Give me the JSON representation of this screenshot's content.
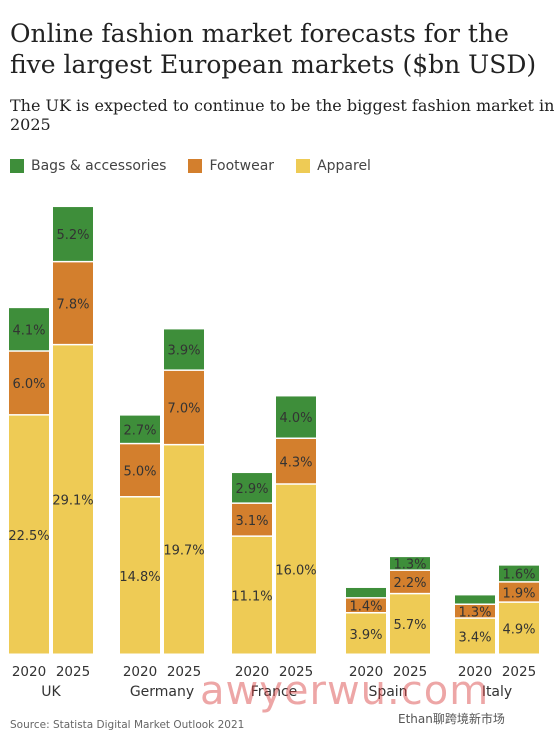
{
  "chart_data": {
    "type": "bar",
    "stacked": true,
    "title": "Online fashion market forecasts for the five largest European markets ($bn USD)",
    "subtitle": "The UK is expected to continue to be the biggest fashion market in 2025",
    "source": "Source: Statista Digital Market Outlook 2021",
    "legend_position": "top-left",
    "grid": false,
    "ylim": [
      0,
      42.2
    ],
    "colors": {
      "Bags & accessories": "#3e8e3a",
      "Footwear": "#d37f2d",
      "Apparel": "#eecb55"
    },
    "groups": [
      {
        "label": "UK",
        "bars": [
          {
            "x": "2020",
            "Apparel": 22.5,
            "Footwear": 6.0,
            "Bags & accessories": 4.1
          },
          {
            "x": "2025",
            "Apparel": 29.1,
            "Footwear": 7.8,
            "Bags & accessories": 5.2
          }
        ]
      },
      {
        "label": "Germany",
        "bars": [
          {
            "x": "2020",
            "Apparel": 14.8,
            "Footwear": 5.0,
            "Bags & accessories": 2.7
          },
          {
            "x": "2025",
            "Apparel": 19.7,
            "Footwear": 7.0,
            "Bags & accessories": 3.9
          }
        ]
      },
      {
        "label": "France",
        "bars": [
          {
            "x": "2020",
            "Apparel": 11.1,
            "Footwear": 3.1,
            "Bags & accessories": 2.9
          },
          {
            "x": "2025",
            "Apparel": 16.0,
            "Footwear": 4.3,
            "Bags & accessories": 4.0
          }
        ]
      },
      {
        "label": "Spain",
        "bars": [
          {
            "x": "2020",
            "Apparel": 3.9,
            "Footwear": 1.4,
            "Bags & accessories": 1.0
          },
          {
            "x": "2025",
            "Apparel": 5.7,
            "Footwear": 2.2,
            "Bags & accessories": 1.3
          }
        ]
      },
      {
        "label": "Italy",
        "bars": [
          {
            "x": "2020",
            "Apparel": 3.4,
            "Footwear": 1.3,
            "Bags & accessories": 0.9
          },
          {
            "x": "2025",
            "Apparel": 4.9,
            "Footwear": 1.9,
            "Bags & accessories": 1.6
          }
        ]
      }
    ],
    "series": [
      {
        "name": "Bags & accessories"
      },
      {
        "name": "Footwear"
      },
      {
        "name": "Apparel"
      }
    ],
    "data_labels": {
      "UK": [
        [
          "22.5%",
          "6.0%",
          "4.1%"
        ],
        [
          "29.1%",
          "7.8%",
          "5.2%"
        ]
      ],
      "Germany": [
        [
          "14.8%",
          "5.0%",
          "2.7%"
        ],
        [
          "19.7%",
          "7.0%",
          "3.9%"
        ]
      ],
      "France": [
        [
          "11.1%",
          "3.1%",
          "2.9%"
        ],
        [
          "16.0%",
          "4.3%",
          "4.0%"
        ]
      ],
      "Spain": [
        [
          "3.9%",
          "1.4%",
          ""
        ],
        [
          "5.7%",
          "2.2%",
          "1.3%"
        ]
      ],
      "Italy": [
        [
          "3.4%",
          "1.3%",
          ""
        ],
        [
          "4.9%",
          "1.9%",
          "1.6%"
        ]
      ]
    }
  },
  "watermark": {
    "text": "awyerwu.com",
    "small_text": "Ethan聊跨境新市场"
  }
}
